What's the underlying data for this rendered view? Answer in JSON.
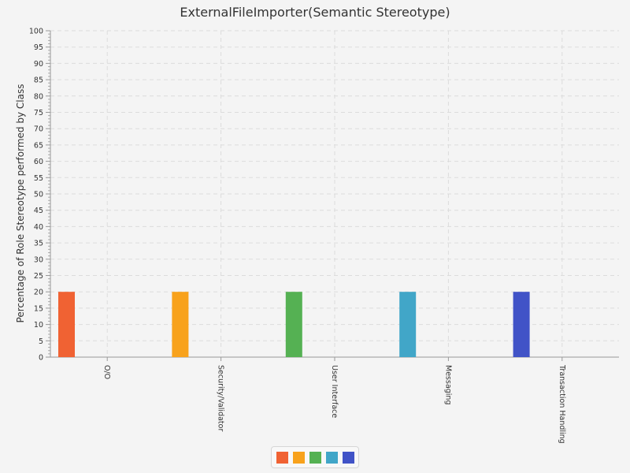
{
  "chart_data": {
    "type": "bar",
    "title": "ExternalFileImporter(Semantic Stereotype)",
    "xlabel": "",
    "ylabel": "Percentage of Role Stereotype performed by Class",
    "categories": [
      "O/O",
      "Security/Validator",
      "User Interface",
      "Messaging",
      "Transaction Handling"
    ],
    "values": [
      20,
      20,
      20,
      20,
      20
    ],
    "ylim": [
      0,
      100
    ],
    "ytick_step": 5,
    "yticks": [
      "0",
      "5",
      "10",
      "15",
      "20",
      "25",
      "30",
      "35",
      "40",
      "45",
      "50",
      "55",
      "60",
      "65",
      "70",
      "75",
      "80",
      "85",
      "90",
      "95",
      "100"
    ],
    "grid": true,
    "legend_position": "bottom-center",
    "colors": [
      "#f06233",
      "#f8a21c",
      "#55b153",
      "#41a6c8",
      "#4153c7"
    ]
  }
}
